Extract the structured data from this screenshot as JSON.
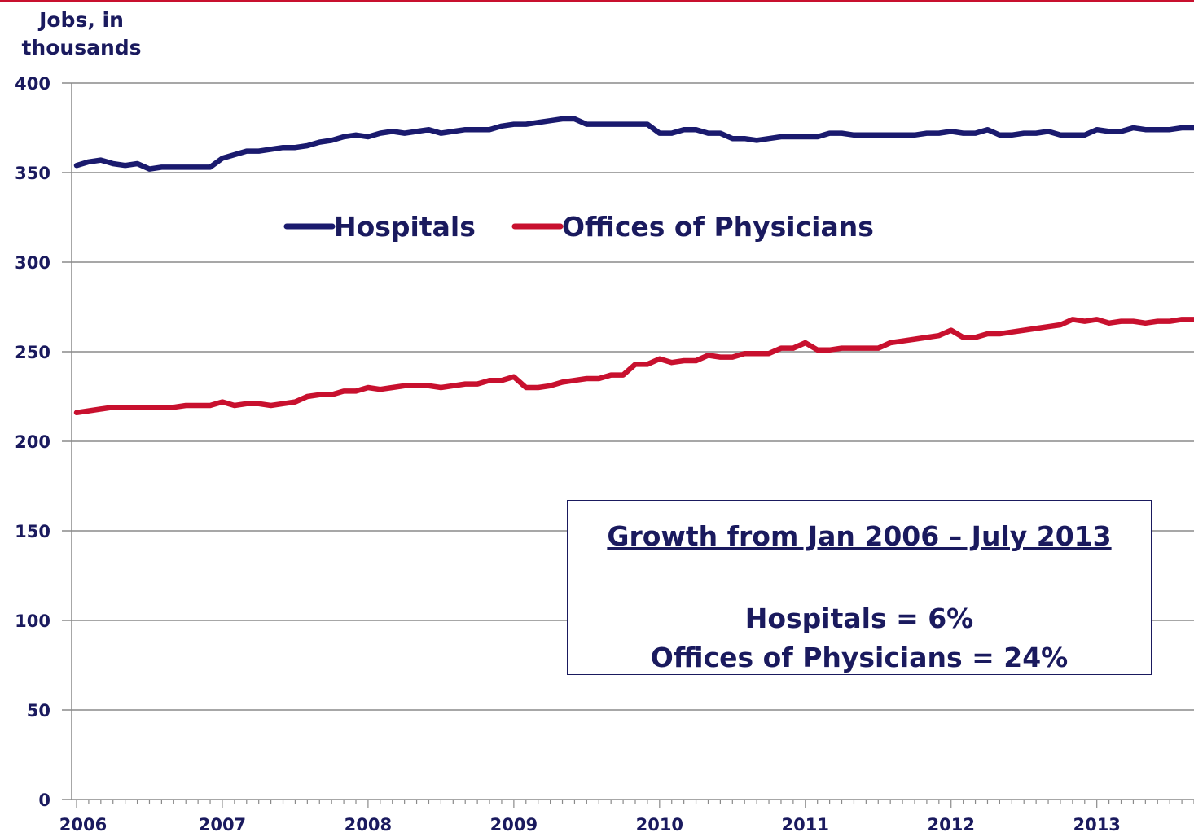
{
  "chart_data": {
    "type": "line",
    "ylabel": "Jobs, in thousands",
    "xlabel": "",
    "ylim": [
      0,
      400
    ],
    "yticks": [
      "0",
      "50",
      "100",
      "150",
      "200",
      "250",
      "300",
      "350",
      "400"
    ],
    "xticks": [
      "2006",
      "2007",
      "2008",
      "2009",
      "2010",
      "2011",
      "2012",
      "2013"
    ],
    "x_range": [
      "2006-01",
      "2013-07"
    ],
    "grid": "horizontal",
    "legend_position": "upper-center",
    "series": [
      {
        "name": "Hospitals",
        "color": "#1a1a6e",
        "values": [
          354,
          356,
          357,
          355,
          354,
          355,
          352,
          353,
          353,
          353,
          353,
          353,
          358,
          360,
          362,
          362,
          363,
          364,
          364,
          365,
          367,
          368,
          370,
          371,
          370,
          372,
          373,
          372,
          373,
          374,
          372,
          373,
          374,
          374,
          374,
          376,
          377,
          377,
          378,
          379,
          380,
          380,
          377,
          377,
          377,
          377,
          377,
          377,
          372,
          372,
          374,
          374,
          372,
          372,
          369,
          369,
          368,
          369,
          370,
          370,
          370,
          370,
          372,
          372,
          371,
          371,
          371,
          371,
          371,
          371,
          372,
          372,
          373,
          372,
          372,
          374,
          371,
          371,
          372,
          372,
          373,
          371,
          371,
          371,
          374,
          373,
          373,
          375,
          374,
          374,
          374,
          375,
          375
        ]
      },
      {
        "name": "Offices of Physicians",
        "color": "#c8102e",
        "values": [
          216,
          217,
          218,
          219,
          219,
          219,
          219,
          219,
          219,
          220,
          220,
          220,
          222,
          220,
          221,
          221,
          220,
          221,
          222,
          225,
          226,
          226,
          228,
          228,
          230,
          229,
          230,
          231,
          231,
          231,
          230,
          231,
          232,
          232,
          234,
          234,
          236,
          230,
          230,
          231,
          233,
          234,
          235,
          235,
          237,
          237,
          243,
          243,
          246,
          244,
          245,
          245,
          248,
          247,
          247,
          249,
          249,
          249,
          252,
          252,
          255,
          251,
          251,
          252,
          252,
          252,
          252,
          255,
          256,
          257,
          258,
          259,
          262,
          258,
          258,
          260,
          260,
          261,
          262,
          263,
          264,
          265,
          268,
          267,
          268,
          266,
          267,
          267,
          266,
          267,
          267,
          268,
          268
        ]
      }
    ]
  },
  "callout": {
    "title": "Growth from Jan 2006 – July 2013",
    "line1": "Hospitals = 6%",
    "line2": "Offices of Physicians = 24%"
  }
}
